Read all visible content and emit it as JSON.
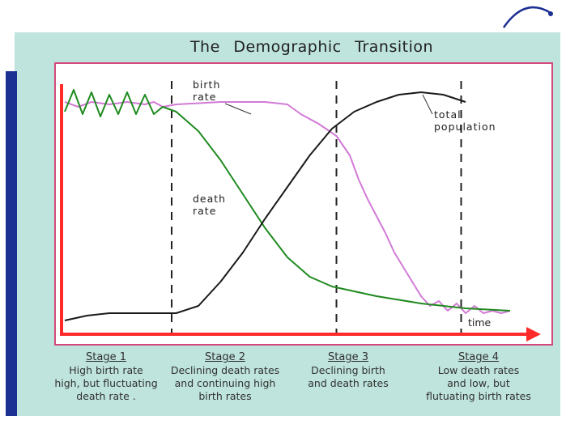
{
  "title": "The Demographic Transition",
  "colors": {
    "slide_bg": "#bfe4dd",
    "blue_bar": "#1c2f93",
    "axes": "#ff2a2a",
    "birth_rate": "#d27ad6",
    "death_rate": "#1f8a1f",
    "total_population": "#1a1a1a",
    "frame": "#d44a7a"
  },
  "chart_data": {
    "type": "line",
    "xlabel": "time",
    "series": [
      {
        "name": "birth rate",
        "label_lines": [
          "birth",
          "rate"
        ],
        "color": "#d27ad6",
        "points": [
          [
            0,
            92
          ],
          [
            3,
            90
          ],
          [
            6,
            92
          ],
          [
            10,
            91
          ],
          [
            14,
            92
          ],
          [
            18,
            91
          ],
          [
            20,
            92
          ],
          [
            22,
            90
          ],
          [
            25,
            91
          ],
          [
            35,
            92
          ],
          [
            45,
            92
          ],
          [
            50,
            91
          ],
          [
            53,
            87
          ],
          [
            57,
            83
          ],
          [
            61,
            78
          ],
          [
            64,
            70
          ],
          [
            66,
            60
          ],
          [
            68,
            52
          ],
          [
            70,
            45
          ],
          [
            72,
            38
          ],
          [
            74,
            30
          ],
          [
            76,
            24
          ],
          [
            78,
            18
          ],
          [
            80,
            12
          ],
          [
            82,
            8
          ],
          [
            84,
            10
          ],
          [
            86,
            6
          ],
          [
            88,
            9
          ],
          [
            90,
            5
          ],
          [
            92,
            8
          ],
          [
            94,
            5
          ],
          [
            96,
            6
          ],
          [
            98,
            5
          ],
          [
            100,
            6
          ]
        ]
      },
      {
        "name": "death rate",
        "label_lines": [
          "death",
          "rate"
        ],
        "color": "#1f8a1f",
        "points": [
          [
            0,
            88
          ],
          [
            2,
            97
          ],
          [
            4,
            87
          ],
          [
            6,
            96
          ],
          [
            8,
            86
          ],
          [
            10,
            95
          ],
          [
            12,
            87
          ],
          [
            14,
            96
          ],
          [
            16,
            87
          ],
          [
            18,
            95
          ],
          [
            20,
            87
          ],
          [
            22,
            90
          ],
          [
            25,
            88
          ],
          [
            30,
            80
          ],
          [
            35,
            68
          ],
          [
            40,
            54
          ],
          [
            45,
            40
          ],
          [
            50,
            28
          ],
          [
            55,
            20
          ],
          [
            60,
            16
          ],
          [
            70,
            12
          ],
          [
            80,
            9
          ],
          [
            90,
            7
          ],
          [
            100,
            6
          ]
        ]
      },
      {
        "name": "total population",
        "label_lines": [
          "total",
          "population"
        ],
        "color": "#1a1a1a",
        "points": [
          [
            0,
            2
          ],
          [
            5,
            4
          ],
          [
            10,
            5
          ],
          [
            15,
            5
          ],
          [
            20,
            5
          ],
          [
            25,
            5
          ],
          [
            30,
            8
          ],
          [
            35,
            18
          ],
          [
            40,
            30
          ],
          [
            45,
            44
          ],
          [
            50,
            57
          ],
          [
            55,
            70
          ],
          [
            60,
            81
          ],
          [
            65,
            88
          ],
          [
            70,
            92
          ],
          [
            75,
            95
          ],
          [
            80,
            96
          ],
          [
            85,
            95
          ],
          [
            90,
            92
          ]
        ]
      }
    ],
    "stage_boundaries_x": [
      24,
      61,
      89
    ],
    "stages": [
      {
        "label": "Stage 1",
        "lines": [
          "High birth rate",
          "high, but fluctuating",
          "death rate ."
        ]
      },
      {
        "label": "Stage 2",
        "lines": [
          "Declining death rates",
          "and continuing high",
          "birth rates"
        ]
      },
      {
        "label": "Stage 3",
        "lines": [
          "Declining birth",
          "and death rates"
        ]
      },
      {
        "label": "Stage 4",
        "lines": [
          "Low death rates",
          "and low, but",
          "flutuating birth rates"
        ]
      }
    ]
  }
}
